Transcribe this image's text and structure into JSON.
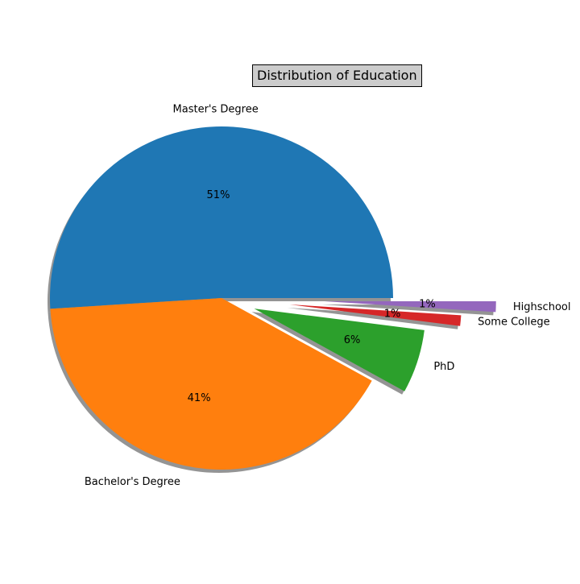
{
  "chart_data": {
    "type": "pie",
    "title": "Distribution of Education",
    "slices": [
      {
        "label": "Master's Degree",
        "value": 51,
        "pct_label": "51%",
        "color": "#1f77b4",
        "explode": 0
      },
      {
        "label": "Bachelor's Degree",
        "value": 41,
        "pct_label": "41%",
        "color": "#ff7f0e",
        "explode": 0
      },
      {
        "label": "PhD",
        "value": 6,
        "pct_label": "6%",
        "color": "#2ca02c",
        "explode": 0.2
      },
      {
        "label": "Some College",
        "value": 1,
        "pct_label": "1%",
        "color": "#d62728",
        "explode": 0.4
      },
      {
        "label": "Highschool",
        "value": 1,
        "pct_label": "1%",
        "color": "#9467bd",
        "explode": 0.6
      }
    ],
    "shadow": true,
    "start_angle": 0,
    "legend": "none"
  }
}
